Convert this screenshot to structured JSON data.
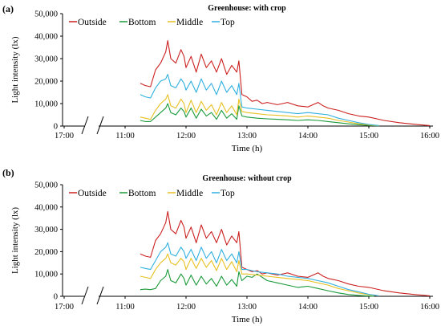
{
  "chart_data": [
    {
      "panel_label": "(a)",
      "title": "Greenhouse: with crop",
      "type": "line",
      "xlabel": "Time (h)",
      "ylabel": "Light intensity (lx)",
      "ylim": [
        0,
        50000
      ],
      "yticks": [
        "0",
        "10,000",
        "20,000",
        "30,000",
        "40,000",
        "50,000"
      ],
      "xticks": [
        "17:00",
        "11:00",
        "12:00",
        "13:00",
        "14:00",
        "15:00",
        "16:00"
      ],
      "x_axis_break": "between 17:00 and 11:00",
      "legend_position": "top-left",
      "series": [
        {
          "name": "Outside",
          "color": "#cc2020",
          "x": [
            "11:15",
            "11:20",
            "11:25",
            "11:30",
            "11:35",
            "11:40",
            "11:42",
            "11:45",
            "11:50",
            "11:55",
            "11:58",
            "12:00",
            "12:05",
            "12:10",
            "12:15",
            "12:20",
            "12:25",
            "12:30",
            "12:35",
            "12:40",
            "12:45",
            "12:50",
            "12:52",
            "12:55",
            "13:00",
            "13:05",
            "13:10",
            "13:15",
            "13:20",
            "13:30",
            "13:40",
            "13:50",
            "14:00",
            "14:05",
            "14:10",
            "14:15",
            "14:20",
            "14:30",
            "14:40",
            "14:50",
            "15:00",
            "15:15",
            "15:30",
            "15:45",
            "16:00"
          ],
          "y": [
            19000,
            18000,
            17500,
            25000,
            28000,
            33000,
            38000,
            30000,
            28000,
            34000,
            31000,
            26000,
            31000,
            24000,
            32000,
            26000,
            29000,
            24000,
            30000,
            23000,
            27000,
            24000,
            29000,
            14000,
            13000,
            11000,
            11500,
            10000,
            10500,
            9500,
            10500,
            9000,
            8500,
            9500,
            10500,
            9000,
            8000,
            7000,
            5500,
            4500,
            4000,
            2500,
            1500,
            800,
            200
          ]
        },
        {
          "name": "Bottom",
          "color": "#1a9a3a",
          "x": [
            "11:15",
            "11:20",
            "11:25",
            "11:30",
            "11:35",
            "11:40",
            "11:42",
            "11:45",
            "11:50",
            "11:55",
            "11:58",
            "12:00",
            "12:05",
            "12:10",
            "12:15",
            "12:20",
            "12:25",
            "12:30",
            "12:35",
            "12:40",
            "12:45",
            "12:50",
            "12:52",
            "12:55",
            "13:00",
            "13:10",
            "13:20",
            "13:30",
            "13:40",
            "13:50",
            "14:00",
            "14:10",
            "14:20",
            "14:30",
            "14:40",
            "14:50",
            "15:00",
            "15:10"
          ],
          "y": [
            2500,
            2000,
            2000,
            4000,
            6000,
            8000,
            10000,
            6000,
            5000,
            8000,
            6500,
            4000,
            8000,
            3500,
            7500,
            4500,
            6000,
            3000,
            7000,
            3500,
            5500,
            3000,
            9000,
            4500,
            4000,
            3500,
            3200,
            3000,
            2800,
            2500,
            2800,
            2500,
            2000,
            1500,
            1000,
            600,
            300,
            100
          ]
        },
        {
          "name": "Middle",
          "color": "#e8c020",
          "x": [
            "11:15",
            "11:20",
            "11:25",
            "11:30",
            "11:35",
            "11:40",
            "11:42",
            "11:45",
            "11:50",
            "11:55",
            "11:58",
            "12:00",
            "12:05",
            "12:10",
            "12:15",
            "12:20",
            "12:25",
            "12:30",
            "12:35",
            "12:40",
            "12:45",
            "12:50",
            "12:52",
            "12:55",
            "13:00",
            "13:10",
            "13:20",
            "13:30",
            "13:40",
            "13:50",
            "14:00",
            "14:10",
            "14:20",
            "14:30",
            "14:40",
            "14:50",
            "15:00",
            "15:10"
          ],
          "y": [
            4000,
            3500,
            3000,
            7000,
            10000,
            12000,
            14000,
            9000,
            8000,
            12000,
            10000,
            6000,
            11500,
            6000,
            11000,
            7000,
            9500,
            5000,
            10500,
            6000,
            9000,
            5000,
            12000,
            6500,
            6000,
            5500,
            5000,
            4800,
            4500,
            4000,
            4500,
            4000,
            3500,
            2500,
            1800,
            1000,
            500,
            150
          ]
        },
        {
          "name": "Top",
          "color": "#30b0e0",
          "x": [
            "11:15",
            "11:20",
            "11:25",
            "11:30",
            "11:35",
            "11:40",
            "11:42",
            "11:45",
            "11:50",
            "11:55",
            "11:58",
            "12:00",
            "12:05",
            "12:10",
            "12:15",
            "12:20",
            "12:25",
            "12:30",
            "12:35",
            "12:40",
            "12:45",
            "12:50",
            "12:52",
            "12:55",
            "13:00",
            "13:10",
            "13:20",
            "13:30",
            "13:40",
            "13:50",
            "14:00",
            "14:10",
            "14:20",
            "14:30",
            "14:40",
            "14:50",
            "15:00",
            "15:10"
          ],
          "y": [
            14000,
            13000,
            12500,
            17000,
            20000,
            21000,
            23000,
            18000,
            17000,
            21000,
            19000,
            16000,
            20000,
            15000,
            21000,
            16000,
            19000,
            14000,
            20000,
            15000,
            18000,
            14000,
            19000,
            8500,
            8000,
            7500,
            7000,
            6500,
            6000,
            5500,
            6000,
            5500,
            5000,
            3500,
            2500,
            1500,
            700,
            200
          ]
        }
      ]
    },
    {
      "panel_label": "(b)",
      "title": "Greenhouse: without crop",
      "type": "line",
      "xlabel": "Time (h)",
      "ylabel": "Light intensity (lx)",
      "ylim": [
        0,
        50000
      ],
      "yticks": [
        "0",
        "10,000",
        "20,000",
        "30,000",
        "40,000",
        "50,000"
      ],
      "xticks": [
        "17:00",
        "11:00",
        "12:00",
        "13:00",
        "14:00",
        "15:00",
        "16:00"
      ],
      "x_axis_break": "between 17:00 and 11:00",
      "legend_position": "top-left",
      "series": [
        {
          "name": "Outside",
          "color": "#cc2020",
          "x": [
            "11:15",
            "11:20",
            "11:25",
            "11:30",
            "11:35",
            "11:40",
            "11:42",
            "11:45",
            "11:50",
            "11:55",
            "11:58",
            "12:00",
            "12:05",
            "12:10",
            "12:15",
            "12:20",
            "12:25",
            "12:30",
            "12:35",
            "12:40",
            "12:45",
            "12:50",
            "12:52",
            "12:55",
            "13:00",
            "13:05",
            "13:10",
            "13:15",
            "13:20",
            "13:30",
            "13:40",
            "13:50",
            "14:00",
            "14:05",
            "14:10",
            "14:15",
            "14:20",
            "14:30",
            "14:40",
            "14:50",
            "15:00",
            "15:15",
            "15:30",
            "15:45",
            "16:00"
          ],
          "y": [
            19000,
            18000,
            17500,
            25000,
            28000,
            33000,
            38000,
            30000,
            28000,
            34000,
            31000,
            26000,
            31000,
            24000,
            32000,
            26000,
            29000,
            24000,
            30000,
            23000,
            27000,
            24000,
            29000,
            13000,
            12000,
            11000,
            11500,
            10000,
            10500,
            9500,
            10500,
            9000,
            8500,
            9500,
            10500,
            9000,
            8000,
            7000,
            5500,
            4500,
            4000,
            2500,
            1500,
            800,
            200
          ]
        },
        {
          "name": "Bottom",
          "color": "#1a9a3a",
          "x": [
            "11:15",
            "11:20",
            "11:25",
            "11:30",
            "11:35",
            "11:40",
            "11:42",
            "11:45",
            "11:50",
            "11:55",
            "11:58",
            "12:00",
            "12:05",
            "12:10",
            "12:15",
            "12:20",
            "12:25",
            "12:30",
            "12:35",
            "12:40",
            "12:45",
            "12:50",
            "12:52",
            "12:55",
            "13:00",
            "13:05",
            "13:10",
            "13:20",
            "13:30",
            "13:40",
            "13:50",
            "14:00",
            "14:10",
            "14:20",
            "14:30",
            "14:40",
            "14:50",
            "15:00",
            "15:05"
          ],
          "y": [
            3000,
            3200,
            3000,
            3500,
            7000,
            9000,
            12000,
            7000,
            6000,
            10000,
            8000,
            5000,
            9500,
            5000,
            9000,
            5500,
            8000,
            4500,
            9000,
            5000,
            7500,
            4500,
            11000,
            7000,
            9000,
            8500,
            10000,
            7000,
            6000,
            5000,
            4000,
            4500,
            3500,
            2500,
            1500,
            800,
            400,
            100,
            0
          ]
        },
        {
          "name": "Middle",
          "color": "#e8c020",
          "x": [
            "11:15",
            "11:20",
            "11:25",
            "11:30",
            "11:35",
            "11:40",
            "11:42",
            "11:45",
            "11:50",
            "11:55",
            "11:58",
            "12:00",
            "12:05",
            "12:10",
            "12:15",
            "12:20",
            "12:25",
            "12:30",
            "12:35",
            "12:40",
            "12:45",
            "12:50",
            "12:52",
            "12:55",
            "13:00",
            "13:10",
            "13:20",
            "13:30",
            "13:40",
            "13:50",
            "14:00",
            "14:10",
            "14:20",
            "14:30",
            "14:40",
            "14:50",
            "15:00",
            "15:10"
          ],
          "y": [
            9000,
            8500,
            8000,
            12000,
            15000,
            17000,
            19000,
            15000,
            14000,
            17000,
            15500,
            12000,
            17000,
            12500,
            17000,
            13000,
            16000,
            11500,
            17000,
            12000,
            15500,
            11000,
            16000,
            10000,
            10000,
            9500,
            9000,
            8500,
            8000,
            7500,
            7000,
            6000,
            5000,
            3500,
            2500,
            1500,
            700,
            200
          ]
        },
        {
          "name": "Top",
          "color": "#30b0e0",
          "x": [
            "11:15",
            "11:20",
            "11:25",
            "11:30",
            "11:35",
            "11:40",
            "11:42",
            "11:45",
            "11:50",
            "11:55",
            "11:58",
            "12:00",
            "12:05",
            "12:10",
            "12:15",
            "12:20",
            "12:25",
            "12:30",
            "12:35",
            "12:40",
            "12:45",
            "12:50",
            "12:52",
            "12:55",
            "13:00",
            "13:10",
            "13:20",
            "13:30",
            "13:40",
            "13:50",
            "14:00",
            "14:10",
            "14:20",
            "14:30",
            "14:40",
            "14:50",
            "15:00",
            "15:10"
          ],
          "y": [
            13000,
            12500,
            12000,
            16000,
            20000,
            22000,
            24000,
            19000,
            18000,
            22000,
            20000,
            17000,
            21000,
            16000,
            22000,
            17000,
            20000,
            15000,
            21000,
            16000,
            19000,
            15000,
            20000,
            12000,
            12000,
            11000,
            10500,
            10000,
            9000,
            8500,
            8000,
            7000,
            6000,
            4500,
            3000,
            2000,
            900,
            200
          ]
        }
      ]
    }
  ]
}
